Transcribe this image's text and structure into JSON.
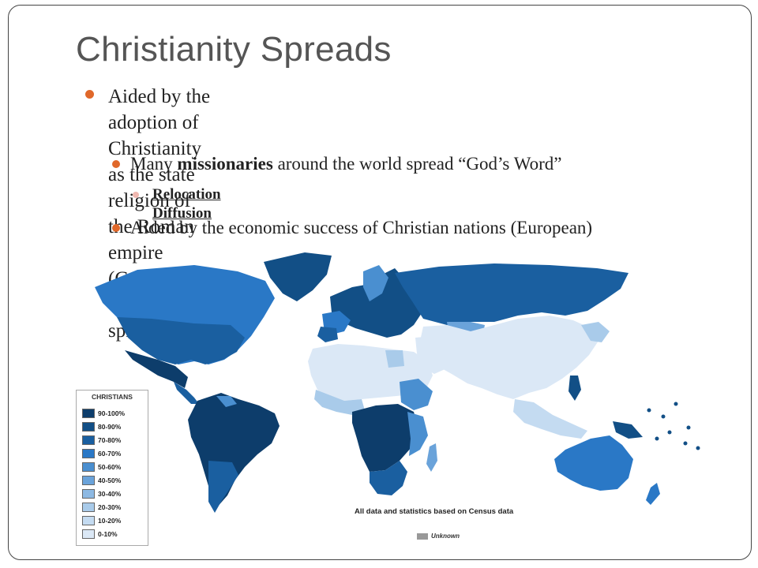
{
  "slide": {
    "title": "Christianity Spreads",
    "bullets": [
      {
        "level": 1,
        "lines": [
          "Aided by the adoption of Christianity as the state religion of",
          "the Roman empire (Constantine), Christianity spread"
        ]
      },
      {
        "level": 2,
        "parts": [
          "Many ",
          "missionaries",
          " around the world spread “God’s Word”"
        ]
      },
      {
        "level": 3,
        "text": "Relocation Diffusion"
      },
      {
        "level": 2,
        "text": "Aided by the economic success of Christian nations (European)"
      }
    ],
    "colors": {
      "title": "#555555",
      "bullet_level1": "#e0682a",
      "bullet_level2": "#e0682a",
      "bullet_level3": "#f0b8b0"
    }
  },
  "map": {
    "legend": {
      "title": "CHRISTIANS",
      "items": [
        {
          "label": "90-100%",
          "color": "#0d3d6b"
        },
        {
          "label": "80-90%",
          "color": "#124f86"
        },
        {
          "label": "70-80%",
          "color": "#1a5fa0"
        },
        {
          "label": "60-70%",
          "color": "#2a78c6"
        },
        {
          "label": "50-60%",
          "color": "#4a8fd0"
        },
        {
          "label": "40-50%",
          "color": "#6aa3da"
        },
        {
          "label": "30-40%",
          "color": "#8db9e3"
        },
        {
          "label": "20-30%",
          "color": "#a9cbea"
        },
        {
          "label": "10-20%",
          "color": "#c4dbf1"
        },
        {
          "label": "0-10%",
          "color": "#dbe8f6"
        }
      ]
    },
    "note": "All data and statistics based on Census data",
    "unknown_label": "Unknown",
    "unknown_color": "#999999"
  }
}
